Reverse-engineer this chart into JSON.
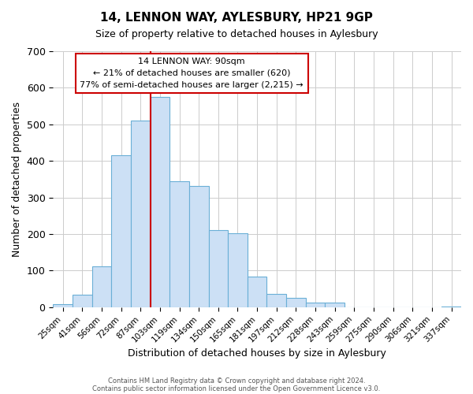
{
  "title": "14, LENNON WAY, AYLESBURY, HP21 9GP",
  "subtitle": "Size of property relative to detached houses in Aylesbury",
  "xlabel": "Distribution of detached houses by size in Aylesbury",
  "ylabel": "Number of detached properties",
  "bar_labels": [
    "25sqm",
    "41sqm",
    "56sqm",
    "72sqm",
    "87sqm",
    "103sqm",
    "119sqm",
    "134sqm",
    "150sqm",
    "165sqm",
    "181sqm",
    "197sqm",
    "212sqm",
    "228sqm",
    "243sqm",
    "259sqm",
    "275sqm",
    "290sqm",
    "306sqm",
    "321sqm",
    "337sqm"
  ],
  "bar_values": [
    8,
    35,
    112,
    415,
    510,
    575,
    345,
    332,
    210,
    203,
    83,
    37,
    25,
    12,
    13,
    0,
    0,
    0,
    0,
    0,
    2
  ],
  "bar_color": "#cce0f5",
  "bar_edge_color": "#6aafd6",
  "vline_x": 4.5,
  "vline_color": "#cc0000",
  "ylim": [
    0,
    700
  ],
  "yticks": [
    0,
    100,
    200,
    300,
    400,
    500,
    600,
    700
  ],
  "annotation_title": "14 LENNON WAY: 90sqm",
  "annotation_line1": "← 21% of detached houses are smaller (620)",
  "annotation_line2": "77% of semi-detached houses are larger (2,215) →",
  "annotation_box_color": "#ffffff",
  "annotation_box_edge": "#cc0000",
  "footer1": "Contains HM Land Registry data © Crown copyright and database right 2024.",
  "footer2": "Contains public sector information licensed under the Open Government Licence v3.0.",
  "background_color": "#ffffff",
  "grid_color": "#cccccc"
}
